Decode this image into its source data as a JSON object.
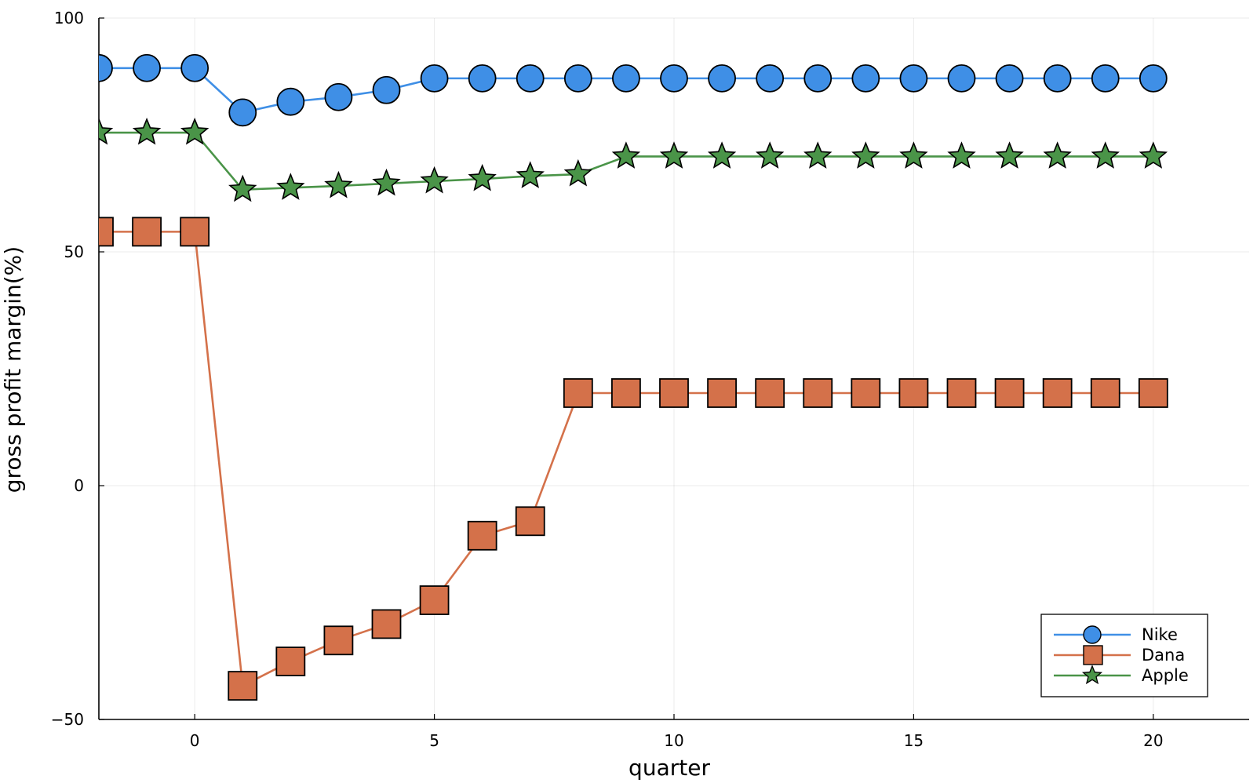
{
  "chart_data": {
    "type": "line",
    "xlabel": "quarter",
    "ylabel": "gross profit margin(%)",
    "xlim": [
      -2,
      22
    ],
    "ylim": [
      -50,
      100
    ],
    "xticks": [
      0,
      5,
      10,
      15,
      20
    ],
    "yticks": [
      -50,
      0,
      50,
      100
    ],
    "x_tick_labels": [
      "0",
      "5",
      "10",
      "15",
      "20"
    ],
    "y_tick_labels": [
      "−50",
      "0",
      "50",
      "100"
    ],
    "grid": true,
    "legend_position": "bottom-right",
    "x": [
      -2,
      -1,
      0,
      1,
      2,
      3,
      4,
      5,
      6,
      7,
      8,
      9,
      10,
      11,
      12,
      13,
      14,
      15,
      16,
      17,
      18,
      19,
      20
    ],
    "series": [
      {
        "name": "Nike",
        "color": "#3f8fe6",
        "marker": "circle",
        "values": [
          89.3,
          89.3,
          89.3,
          79.8,
          82.1,
          83.1,
          84.6,
          87.1,
          87.1,
          87.1,
          87.1,
          87.1,
          87.1,
          87.1,
          87.1,
          87.1,
          87.1,
          87.1,
          87.1,
          87.1,
          87.1,
          87.1,
          87.1
        ]
      },
      {
        "name": "Dana",
        "color": "#d4714a",
        "marker": "square",
        "values": [
          54.3,
          54.3,
          54.3,
          -42.8,
          -37.6,
          -33.1,
          -29.6,
          -24.5,
          -10.7,
          -7.6,
          19.8,
          19.8,
          19.8,
          19.8,
          19.8,
          19.8,
          19.8,
          19.8,
          19.8,
          19.8,
          19.8,
          19.8,
          19.8
        ]
      },
      {
        "name": "Apple",
        "color": "#4a9448",
        "marker": "star",
        "values": [
          75.5,
          75.5,
          75.5,
          63.3,
          63.7,
          64.1,
          64.6,
          65.1,
          65.6,
          66.2,
          66.6,
          70.4,
          70.4,
          70.4,
          70.4,
          70.4,
          70.4,
          70.4,
          70.4,
          70.4,
          70.4,
          70.4,
          70.4
        ]
      }
    ]
  }
}
